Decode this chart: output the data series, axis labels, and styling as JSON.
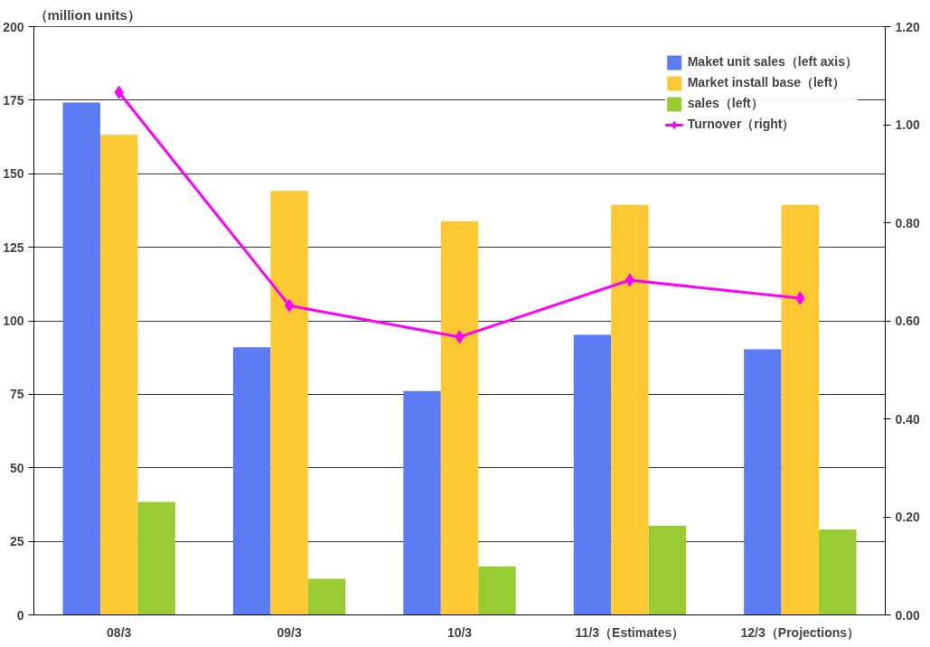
{
  "chart_data": {
    "type": "bar",
    "ylabel": "（million units）",
    "categories": [
      "08/3",
      "09/3",
      "10/3",
      "11/3（Estimates）",
      "12/3（Projections）"
    ],
    "ylim": [
      0,
      200
    ],
    "yticks": [
      0,
      25,
      50,
      75,
      100,
      125,
      150,
      175,
      200
    ],
    "y2lim": [
      0,
      1.2
    ],
    "y2ticks": [
      {
        "value": 0,
        "label": "0.00"
      },
      {
        "value": 0.2,
        "label": "0.20"
      },
      {
        "value": 0.4,
        "label": "0.40"
      },
      {
        "value": 0.6,
        "label": "0.60"
      },
      {
        "value": 0.8,
        "label": "0.80"
      },
      {
        "value": 1.0,
        "label": "1.00"
      },
      {
        "value": 1.2,
        "label": "1.20"
      }
    ],
    "grid": "y",
    "legend": "top right",
    "series": [
      {
        "name": "Maket unit sales（left axis）",
        "color": "#5b7cf2",
        "values": [
          174.2,
          91,
          76.1,
          95.2,
          90.3
        ]
      },
      {
        "name": "Market install base（left）",
        "color": "#ffc933",
        "values": [
          163.2,
          144.2,
          133.9,
          139.4,
          139.4
        ]
      },
      {
        "name": "sales（left）",
        "color": "#99cc33",
        "values": [
          38.4,
          12.3,
          16.5,
          30.3,
          29
        ]
      },
      {
        "name": "Turnover（right）",
        "type": "line",
        "axis": "y2",
        "marker": "diamond",
        "color": "#ff00ff",
        "values": [
          1.066,
          0.631,
          0.567,
          0.683,
          0.646
        ]
      }
    ]
  }
}
